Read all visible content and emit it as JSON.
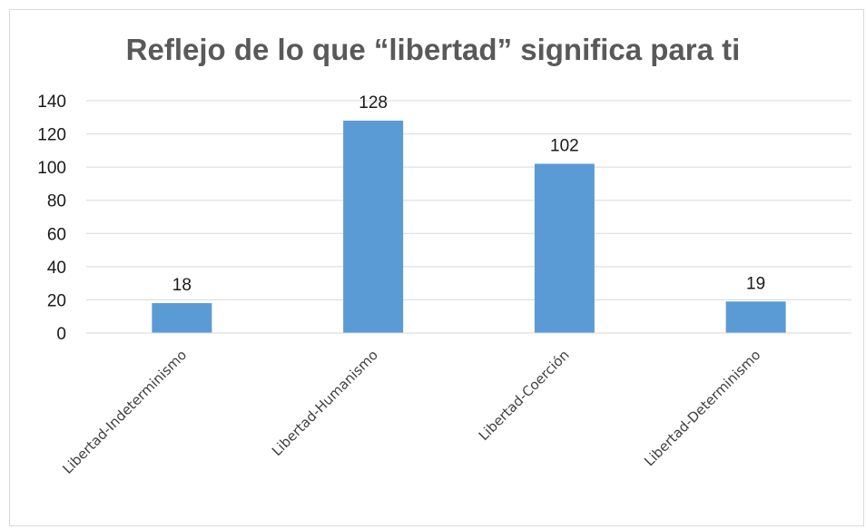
{
  "chart_data": {
    "type": "bar",
    "title": "Reflejo de lo que “libertad” significa para ti",
    "categories": [
      "Libertad-Indeterminismo",
      "Libertad-Humanismo",
      "Libertad-Coerción",
      "Libertad-Determinismo"
    ],
    "values": [
      18,
      128,
      102,
      19
    ],
    "xlabel": "",
    "ylabel": "",
    "ylim": [
      0,
      140
    ],
    "yticks": [
      0,
      20,
      40,
      60,
      80,
      100,
      120,
      140
    ],
    "grid": true,
    "legend": "none",
    "bar_color": "#5b9bd5",
    "grid_color": "#d9d9d9",
    "data_labels": true
  }
}
